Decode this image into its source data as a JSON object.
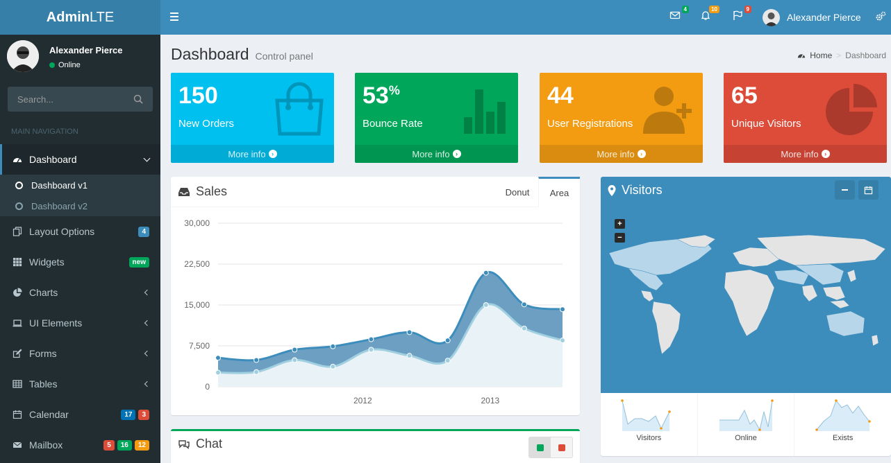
{
  "header": {
    "logo_bold": "Admin",
    "logo_light": "LTE",
    "user_name": "Alexander Pierce",
    "messages_count": "4",
    "notifications_count": "10",
    "tasks_count": "9",
    "colors": {
      "primary": "#3c8dbc",
      "logo": "#367fa9"
    }
  },
  "sidebar": {
    "user_name": "Alexander Pierce",
    "status": "Online",
    "search_placeholder": "Search...",
    "nav_header": "MAIN NAVIGATION",
    "items": {
      "dashboard": "Dashboard",
      "dashboard_v1": "Dashboard v1",
      "dashboard_v2": "Dashboard v2",
      "layout": "Layout Options",
      "layout_badge": "4",
      "widgets": "Widgets",
      "widgets_badge": "new",
      "charts": "Charts",
      "ui": "UI Elements",
      "forms": "Forms",
      "tables": "Tables",
      "calendar": "Calendar",
      "calendar_badge_1": "17",
      "calendar_badge_2": "3",
      "mailbox": "Mailbox",
      "mailbox_badge_1": "5",
      "mailbox_badge_2": "16",
      "mailbox_badge_3": "12"
    }
  },
  "page": {
    "title": "Dashboard",
    "subtitle": "Control panel",
    "breadcrumb_home": "Home",
    "breadcrumb_current": "Dashboard"
  },
  "stats": [
    {
      "value": "150",
      "sup": "",
      "label": "New Orders",
      "link": "More info",
      "color": "#00c0ef"
    },
    {
      "value": "53",
      "sup": "%",
      "label": "Bounce Rate",
      "link": "More info",
      "color": "#00a65a"
    },
    {
      "value": "44",
      "sup": "",
      "label": "User Registrations",
      "link": "More info",
      "color": "#f39c12"
    },
    {
      "value": "65",
      "sup": "",
      "label": "Unique Visitors",
      "link": "More info",
      "color": "#dd4b39"
    }
  ],
  "sales": {
    "title": "Sales",
    "tab_donut": "Donut",
    "tab_area": "Area"
  },
  "chart_data": {
    "type": "area",
    "ylim": [
      0,
      30000
    ],
    "yticks": [
      "0",
      "7,500",
      "15,000",
      "22,500",
      "30,000"
    ],
    "xticks": [
      "2012",
      "2013"
    ],
    "series": [
      {
        "values": [
          5300,
          4900,
          6800,
          7400,
          8700,
          10000,
          8500,
          20900,
          15100,
          14200
        ]
      },
      {
        "values": [
          2600,
          2700,
          4900,
          3700,
          6800,
          5700,
          4800,
          15000,
          10700,
          8500
        ]
      }
    ]
  },
  "chat": {
    "title": "Chat"
  },
  "visitors": {
    "title": "Visitors",
    "spark_visitors": "Visitors",
    "spark_online": "Online",
    "spark_exists": "Exists"
  }
}
